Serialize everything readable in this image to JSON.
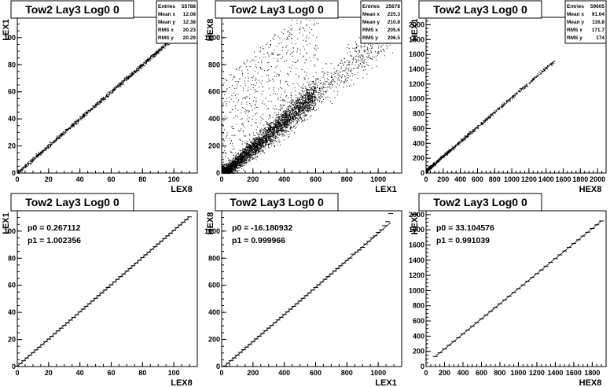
{
  "chart_data": [
    {
      "type": "scatter",
      "title": "Tow2 Lay3 Log0 0",
      "xlabel": "LEX8",
      "ylabel": "LEX1",
      "xlim": [
        0,
        115
      ],
      "ylim": [
        0,
        115
      ],
      "xticks": [
        0,
        20,
        40,
        60,
        80,
        100
      ],
      "yticks": [
        0,
        20,
        40,
        60,
        80,
        100
      ],
      "stats": [
        [
          "Entries",
          "55788"
        ],
        [
          "Mean x",
          "12.08"
        ],
        [
          "Mean y",
          "12.38"
        ],
        [
          "RMS x",
          "20.23"
        ],
        [
          "RMS y",
          "20.29"
        ]
      ],
      "trend": {
        "x0": 0,
        "x1": 112,
        "p0": 0.27,
        "p1": 1.0,
        "spread": 0.8
      }
    },
    {
      "type": "scatter",
      "title": "Tow2 Lay3 Log0 0",
      "xlabel": "LEX1",
      "ylabel": "HEX8",
      "xlim": [
        0,
        1150
      ],
      "ylim": [
        0,
        1150
      ],
      "xticks": [
        0,
        200,
        400,
        600,
        800,
        1000
      ],
      "yticks": [
        0,
        200,
        400,
        600,
        800,
        1000
      ],
      "stats": [
        [
          "Entries",
          "25678"
        ],
        [
          "Mean x",
          "225.3"
        ],
        [
          "Mean y",
          "210.8"
        ],
        [
          "RMS x",
          "205.6"
        ],
        [
          "RMS y",
          "206.5"
        ]
      ],
      "trend": {
        "x0": 0,
        "x1": 1100,
        "p0": -16,
        "p1": 1.0,
        "spread": 25
      }
    },
    {
      "type": "scatter",
      "title": "Tow2 Lay3 Log0 0",
      "xlabel": "HEX8",
      "ylabel": "HEX1",
      "xlim": [
        0,
        2100
      ],
      "ylim": [
        0,
        2100
      ],
      "xticks": [
        0,
        200,
        400,
        600,
        800,
        1000,
        1200,
        1400,
        1600,
        1800,
        2000
      ],
      "yticks": [
        0,
        200,
        400,
        600,
        800,
        1000,
        1200,
        1400,
        1600,
        1800,
        2000
      ],
      "stats": [
        [
          "Entries",
          "59605"
        ],
        [
          "Mean x",
          "91.04"
        ],
        [
          "Mean y",
          "116.8"
        ],
        [
          "RMS x",
          "171.7"
        ],
        [
          "RMS y",
          "174"
        ]
      ],
      "trend": {
        "x0": 0,
        "x1": 1500,
        "p0": 33,
        "p1": 0.99,
        "spread": 12
      }
    },
    {
      "type": "line",
      "title": "Tow2 Lay3 Log0 0",
      "xlabel": "LEX8",
      "ylabel": "LEX1",
      "xlim": [
        0,
        115
      ],
      "ylim": [
        0,
        115
      ],
      "xticks": [
        0,
        20,
        40,
        60,
        80,
        100
      ],
      "yticks": [
        0,
        20,
        40,
        60,
        80,
        100
      ],
      "fit": {
        "p0_text": "p0 = 0.267112",
        "p1_text": "p1 = 1.002356",
        "p0": 0.267112,
        "p1": 1.002356
      },
      "x": [
        0,
        2,
        4,
        6,
        8,
        10,
        12,
        14,
        16,
        18,
        20,
        22,
        24,
        26,
        28,
        30,
        32,
        34,
        36,
        38,
        40,
        42,
        44,
        46,
        48,
        50,
        52,
        54,
        56,
        58,
        60,
        62,
        64,
        66,
        68,
        70,
        72,
        74,
        76,
        78,
        80,
        82,
        84,
        86,
        88,
        90,
        92,
        94,
        96,
        98,
        100,
        102,
        104,
        106,
        108,
        110
      ],
      "y": [
        0.3,
        2.3,
        4.3,
        6.3,
        8.3,
        10.3,
        12.3,
        14.3,
        16.3,
        18.3,
        20.3,
        22.3,
        24.3,
        26.3,
        28.3,
        30.3,
        32.3,
        34.3,
        36.3,
        38.3,
        40.4,
        42.4,
        44.4,
        46.4,
        48.4,
        50.4,
        52.4,
        54.4,
        56.4,
        58.4,
        60.4,
        62.4,
        64.4,
        66.4,
        68.4,
        70.4,
        72.4,
        74.4,
        76.4,
        78.4,
        80.5,
        82.5,
        84.5,
        86.5,
        88.5,
        90.5,
        92.5,
        94.5,
        96.5,
        98.5,
        100.5,
        102.5,
        104.5,
        106.5,
        108.5,
        110.5
      ]
    },
    {
      "type": "line",
      "title": "Tow2 Lay3 Log0 0",
      "xlabel": "LEX1",
      "ylabel": "HEX8",
      "xlim": [
        0,
        1150
      ],
      "ylim": [
        0,
        1150
      ],
      "xticks": [
        0,
        200,
        400,
        600,
        800,
        1000
      ],
      "yticks": [
        0,
        200,
        400,
        600,
        800,
        1000
      ],
      "fit": {
        "p0_text": "p0 = -16.180932",
        "p1_text": "p1 = 0.999966",
        "p0": -16.180932,
        "p1": 0.999966
      },
      "x": [
        20,
        40,
        60,
        80,
        100,
        120,
        140,
        160,
        180,
        200,
        220,
        240,
        260,
        280,
        300,
        320,
        340,
        360,
        380,
        400,
        420,
        440,
        460,
        480,
        500,
        520,
        540,
        560,
        580,
        600,
        620,
        640,
        660,
        680,
        700,
        720,
        740,
        760,
        780,
        800,
        820,
        840,
        860,
        880,
        900,
        920,
        940,
        960,
        980,
        1000,
        1020,
        1040,
        1060,
        1080
      ],
      "y": [
        4,
        24,
        44,
        64,
        84,
        104,
        124,
        144,
        164,
        184,
        204,
        224,
        244,
        264,
        284,
        304,
        324,
        344,
        364,
        384,
        404,
        424,
        444,
        464,
        484,
        504,
        524,
        544,
        564,
        584,
        604,
        624,
        644,
        664,
        684,
        704,
        724,
        744,
        764,
        784,
        800,
        830,
        845,
        860,
        880,
        905,
        925,
        950,
        965,
        990,
        1010,
        1040,
        1070,
        1130
      ]
    },
    {
      "type": "line",
      "title": "Tow2 Lay3 Log0 0",
      "xlabel": "HEX8",
      "ylabel": "HEX1",
      "xlim": [
        0,
        1950
      ],
      "ylim": [
        0,
        2050
      ],
      "xticks": [
        0,
        200,
        400,
        600,
        800,
        1000,
        1200,
        1400,
        1600,
        1800
      ],
      "yticks": [
        0,
        200,
        400,
        600,
        800,
        1000,
        1200,
        1400,
        1600,
        1800,
        2000
      ],
      "fit": {
        "p0_text": "p0 = 33.104576",
        "p1_text": "p1 = 0.991039",
        "p0": 33.104576,
        "p1": 0.991039
      },
      "x": [
        100,
        150,
        200,
        250,
        300,
        350,
        400,
        450,
        500,
        550,
        600,
        650,
        700,
        750,
        800,
        850,
        900,
        950,
        1000,
        1050,
        1100,
        1150,
        1200,
        1250,
        1300,
        1350,
        1400,
        1450,
        1500,
        1550,
        1600,
        1650,
        1700,
        1750,
        1800,
        1850,
        1900
      ],
      "y": [
        132,
        182,
        231,
        281,
        330,
        380,
        430,
        479,
        529,
        578,
        628,
        677,
        727,
        776,
        826,
        876,
        925,
        975,
        1024,
        1074,
        1123,
        1173,
        1222,
        1272,
        1321,
        1371,
        1420,
        1470,
        1520,
        1569,
        1619,
        1668,
        1718,
        1767,
        1817,
        1866,
        1916
      ]
    }
  ]
}
